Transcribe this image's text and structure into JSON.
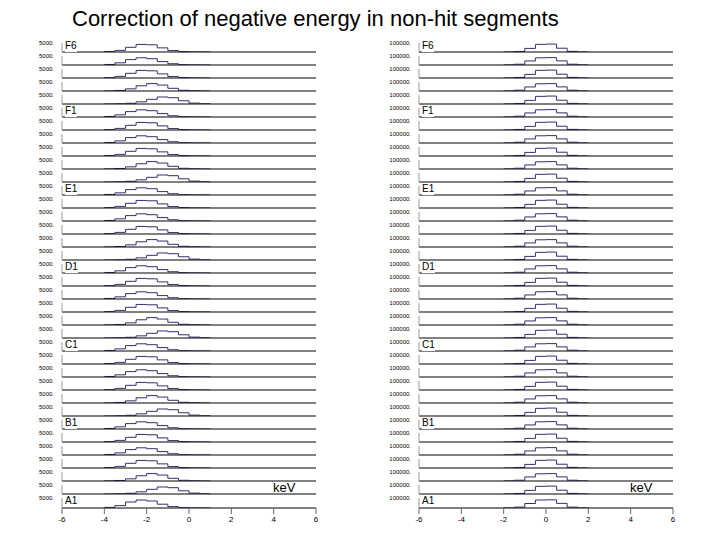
{
  "title": "Correction of negative energy in non-hit segments",
  "chart_data": [
    {
      "type": "histogram",
      "xlabel": "keV",
      "color": "#3b2c6e",
      "xlim": [
        -6,
        6
      ],
      "xticks": [
        -6,
        -4,
        -2,
        0,
        2,
        4,
        6
      ],
      "ylim": [
        0,
        5000
      ],
      "yticks": [
        {
          "value": 5000,
          "label": "5000."
        }
      ],
      "bins": [
        -4,
        -3.5,
        -3,
        -2.5,
        -2,
        -1.5,
        -1,
        -0.5,
        0,
        0.5,
        1
      ],
      "series": [
        {
          "name": "F6",
          "values": [
            200,
            900,
            2600,
            4200,
            4000,
            2300,
            800,
            200,
            50,
            0
          ]
        },
        {
          "name": null,
          "values": [
            300,
            1200,
            3000,
            4000,
            3500,
            1900,
            700,
            150,
            30,
            0
          ]
        },
        {
          "name": null,
          "values": [
            200,
            900,
            2600,
            4200,
            4000,
            2300,
            800,
            200,
            50,
            0
          ]
        },
        {
          "name": null,
          "values": [
            50,
            300,
            1200,
            2900,
            4100,
            3300,
            1500,
            400,
            100,
            0
          ]
        },
        {
          "name": null,
          "values": [
            0,
            100,
            400,
            1200,
            2600,
            3900,
            3500,
            1800,
            500,
            100
          ]
        },
        {
          "name": "F1",
          "values": [
            300,
            1200,
            3000,
            4000,
            3500,
            1900,
            700,
            150,
            30,
            0
          ]
        },
        {
          "name": null,
          "values": [
            200,
            900,
            2600,
            4200,
            4000,
            2300,
            800,
            200,
            50,
            0
          ]
        },
        {
          "name": null,
          "values": [
            300,
            1200,
            3000,
            4000,
            3500,
            1900,
            700,
            150,
            30,
            0
          ]
        },
        {
          "name": null,
          "values": [
            200,
            900,
            2600,
            4200,
            4000,
            2300,
            800,
            200,
            50,
            0
          ]
        },
        {
          "name": null,
          "values": [
            50,
            300,
            1200,
            2900,
            4100,
            3300,
            1500,
            400,
            100,
            0
          ]
        },
        {
          "name": null,
          "values": [
            0,
            100,
            400,
            1200,
            2600,
            3900,
            3500,
            1800,
            500,
            100
          ]
        },
        {
          "name": "E1",
          "values": [
            300,
            1200,
            3000,
            4000,
            3500,
            1900,
            700,
            150,
            30,
            0
          ]
        },
        {
          "name": null,
          "values": [
            200,
            900,
            2600,
            4200,
            4000,
            2300,
            800,
            200,
            50,
            0
          ]
        },
        {
          "name": null,
          "values": [
            300,
            1200,
            3000,
            4000,
            3500,
            1900,
            700,
            150,
            30,
            0
          ]
        },
        {
          "name": null,
          "values": [
            200,
            900,
            2600,
            4200,
            4000,
            2300,
            800,
            200,
            50,
            0
          ]
        },
        {
          "name": null,
          "values": [
            50,
            300,
            1200,
            2900,
            4100,
            3300,
            1500,
            400,
            100,
            0
          ]
        },
        {
          "name": null,
          "values": [
            0,
            100,
            400,
            1200,
            2600,
            3900,
            3500,
            1800,
            500,
            100
          ]
        },
        {
          "name": "D1",
          "values": [
            300,
            1200,
            3000,
            4000,
            3500,
            1900,
            700,
            150,
            30,
            0
          ]
        },
        {
          "name": null,
          "values": [
            200,
            900,
            2600,
            4200,
            4000,
            2300,
            800,
            200,
            50,
            0
          ]
        },
        {
          "name": null,
          "values": [
            300,
            1200,
            3000,
            4000,
            3500,
            1900,
            700,
            150,
            30,
            0
          ]
        },
        {
          "name": null,
          "values": [
            200,
            900,
            2600,
            4200,
            4000,
            2300,
            800,
            200,
            50,
            0
          ]
        },
        {
          "name": null,
          "values": [
            50,
            300,
            1200,
            2900,
            4100,
            3300,
            1500,
            400,
            100,
            0
          ]
        },
        {
          "name": null,
          "values": [
            0,
            100,
            400,
            1200,
            2600,
            3900,
            3500,
            1800,
            500,
            100
          ]
        },
        {
          "name": "C1",
          "values": [
            300,
            1200,
            3000,
            4000,
            3500,
            1900,
            700,
            150,
            30,
            0
          ]
        },
        {
          "name": null,
          "values": [
            200,
            900,
            2600,
            4200,
            4000,
            2300,
            800,
            200,
            50,
            0
          ]
        },
        {
          "name": null,
          "values": [
            300,
            1200,
            3000,
            4000,
            3500,
            1900,
            700,
            150,
            30,
            0
          ]
        },
        {
          "name": null,
          "values": [
            200,
            900,
            2600,
            4200,
            4000,
            2300,
            800,
            200,
            50,
            0
          ]
        },
        {
          "name": null,
          "values": [
            50,
            300,
            1200,
            2900,
            4100,
            3300,
            1500,
            400,
            100,
            0
          ]
        },
        {
          "name": null,
          "values": [
            0,
            100,
            400,
            1200,
            2600,
            3900,
            3500,
            1800,
            500,
            100
          ]
        },
        {
          "name": "B1",
          "values": [
            300,
            1200,
            3000,
            4000,
            3500,
            1900,
            700,
            150,
            30,
            0
          ]
        },
        {
          "name": null,
          "values": [
            200,
            900,
            2600,
            4200,
            4000,
            2300,
            800,
            200,
            50,
            0
          ]
        },
        {
          "name": null,
          "values": [
            300,
            1200,
            3000,
            4000,
            3500,
            1900,
            700,
            150,
            30,
            0
          ]
        },
        {
          "name": null,
          "values": [
            200,
            900,
            2600,
            4200,
            4000,
            2300,
            800,
            200,
            50,
            0
          ]
        },
        {
          "name": null,
          "values": [
            50,
            300,
            1200,
            2900,
            4100,
            3300,
            1500,
            400,
            100,
            0
          ]
        },
        {
          "name": null,
          "values": [
            0,
            100,
            400,
            1200,
            2600,
            3900,
            3500,
            1800,
            500,
            100
          ]
        },
        {
          "name": "A1",
          "values": [
            300,
            1200,
            3000,
            4000,
            3500,
            1900,
            700,
            150,
            30,
            0
          ]
        }
      ]
    },
    {
      "type": "histogram",
      "xlabel": "keV",
      "color": "#3b2c6e",
      "xlim": [
        -6,
        6
      ],
      "xticks": [
        -6,
        -4,
        -2,
        0,
        2,
        4,
        6
      ],
      "ylim": [
        0,
        100000
      ],
      "yticks": [
        {
          "value": 100000,
          "label": "100000."
        }
      ],
      "bins": [
        -2,
        -1.5,
        -1,
        -0.5,
        0,
        0.5,
        1,
        1.5,
        2
      ],
      "series": [
        {
          "name": "F6",
          "values": [
            500,
            6000,
            40000,
            85000,
            88000,
            42000,
            7000,
            600
          ]
        },
        {
          "name": null,
          "values": [
            800,
            9000,
            45000,
            80000,
            82000,
            46000,
            9000,
            900
          ]
        },
        {
          "name": null,
          "values": [
            500,
            6000,
            40000,
            85000,
            88000,
            42000,
            7000,
            600
          ]
        },
        {
          "name": null,
          "values": [
            800,
            9000,
            45000,
            80000,
            82000,
            46000,
            9000,
            900
          ]
        },
        {
          "name": null,
          "values": [
            500,
            6000,
            40000,
            85000,
            88000,
            42000,
            7000,
            600
          ]
        },
        {
          "name": "F1",
          "values": [
            800,
            9000,
            45000,
            80000,
            82000,
            46000,
            9000,
            900
          ]
        },
        {
          "name": null,
          "values": [
            500,
            6000,
            40000,
            85000,
            88000,
            42000,
            7000,
            600
          ]
        },
        {
          "name": null,
          "values": [
            800,
            9000,
            45000,
            80000,
            82000,
            46000,
            9000,
            900
          ]
        },
        {
          "name": null,
          "values": [
            500,
            6000,
            40000,
            85000,
            88000,
            42000,
            7000,
            600
          ]
        },
        {
          "name": null,
          "values": [
            800,
            9000,
            45000,
            80000,
            82000,
            46000,
            9000,
            900
          ]
        },
        {
          "name": null,
          "values": [
            500,
            6000,
            40000,
            85000,
            88000,
            42000,
            7000,
            600
          ]
        },
        {
          "name": "E1",
          "values": [
            800,
            9000,
            45000,
            80000,
            82000,
            46000,
            9000,
            900
          ]
        },
        {
          "name": null,
          "values": [
            500,
            6000,
            40000,
            85000,
            88000,
            42000,
            7000,
            600
          ]
        },
        {
          "name": null,
          "values": [
            800,
            9000,
            45000,
            80000,
            82000,
            46000,
            9000,
            900
          ]
        },
        {
          "name": null,
          "values": [
            500,
            6000,
            40000,
            85000,
            88000,
            42000,
            7000,
            600
          ]
        },
        {
          "name": null,
          "values": [
            800,
            9000,
            45000,
            80000,
            82000,
            46000,
            9000,
            900
          ]
        },
        {
          "name": null,
          "values": [
            500,
            6000,
            40000,
            85000,
            88000,
            42000,
            7000,
            600
          ]
        },
        {
          "name": "D1",
          "values": [
            800,
            9000,
            45000,
            80000,
            82000,
            46000,
            9000,
            900
          ]
        },
        {
          "name": null,
          "values": [
            500,
            6000,
            40000,
            85000,
            88000,
            42000,
            7000,
            600
          ]
        },
        {
          "name": null,
          "values": [
            800,
            9000,
            45000,
            80000,
            82000,
            46000,
            9000,
            900
          ]
        },
        {
          "name": null,
          "values": [
            500,
            6000,
            40000,
            85000,
            88000,
            42000,
            7000,
            600
          ]
        },
        {
          "name": null,
          "values": [
            800,
            9000,
            45000,
            80000,
            82000,
            46000,
            9000,
            900
          ]
        },
        {
          "name": null,
          "values": [
            500,
            6000,
            40000,
            85000,
            88000,
            42000,
            7000,
            600
          ]
        },
        {
          "name": "C1",
          "values": [
            800,
            9000,
            45000,
            80000,
            82000,
            46000,
            9000,
            900
          ]
        },
        {
          "name": null,
          "values": [
            500,
            6000,
            40000,
            85000,
            88000,
            42000,
            7000,
            600
          ]
        },
        {
          "name": null,
          "values": [
            800,
            9000,
            45000,
            80000,
            82000,
            46000,
            9000,
            900
          ]
        },
        {
          "name": null,
          "values": [
            500,
            6000,
            40000,
            85000,
            88000,
            42000,
            7000,
            600
          ]
        },
        {
          "name": null,
          "values": [
            800,
            9000,
            45000,
            80000,
            82000,
            46000,
            9000,
            900
          ]
        },
        {
          "name": null,
          "values": [
            500,
            6000,
            40000,
            85000,
            88000,
            42000,
            7000,
            600
          ]
        },
        {
          "name": "B1",
          "values": [
            800,
            9000,
            45000,
            80000,
            82000,
            46000,
            9000,
            900
          ]
        },
        {
          "name": null,
          "values": [
            500,
            6000,
            40000,
            85000,
            88000,
            42000,
            7000,
            600
          ]
        },
        {
          "name": null,
          "values": [
            800,
            9000,
            45000,
            80000,
            82000,
            46000,
            9000,
            900
          ]
        },
        {
          "name": null,
          "values": [
            500,
            6000,
            40000,
            85000,
            88000,
            42000,
            7000,
            600
          ]
        },
        {
          "name": null,
          "values": [
            800,
            9000,
            45000,
            80000,
            82000,
            46000,
            9000,
            900
          ]
        },
        {
          "name": null,
          "values": [
            500,
            6000,
            40000,
            85000,
            88000,
            42000,
            7000,
            600
          ]
        },
        {
          "name": "A1",
          "values": [
            800,
            9000,
            45000,
            80000,
            82000,
            46000,
            9000,
            900
          ]
        }
      ]
    }
  ]
}
